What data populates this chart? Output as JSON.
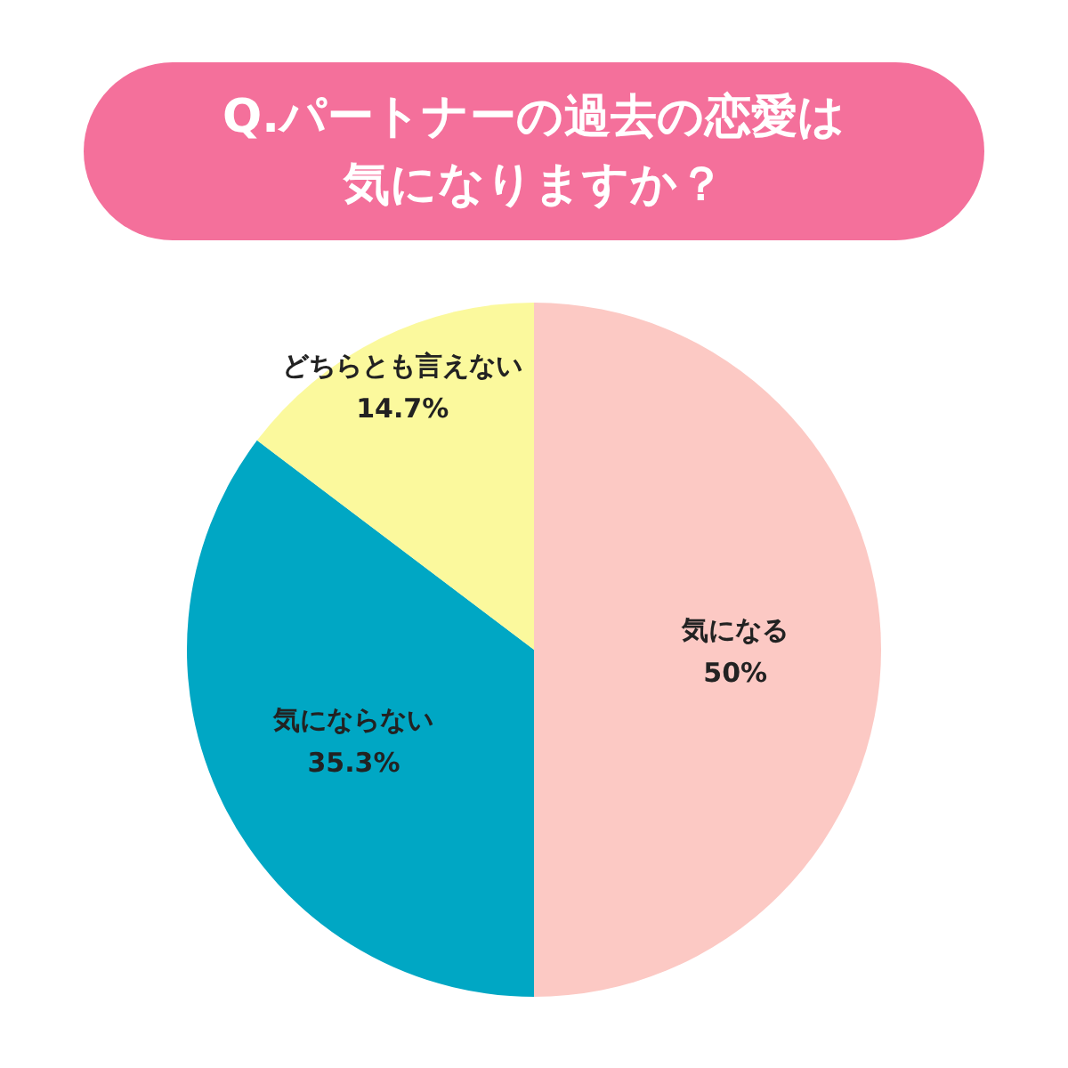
{
  "chart_data": {
    "type": "pie",
    "title": "Q.パートナーの過去の恋愛は気になりますか？",
    "categories": [
      "気になる",
      "気にならない",
      "どちらとも言えない"
    ],
    "values": [
      50,
      35.3,
      14.7
    ],
    "value_labels": [
      "50%",
      "35.3%",
      "14.7%"
    ],
    "colors": [
      "#fcc9c4",
      "#00a7c4",
      "#fbf99d"
    ]
  }
}
